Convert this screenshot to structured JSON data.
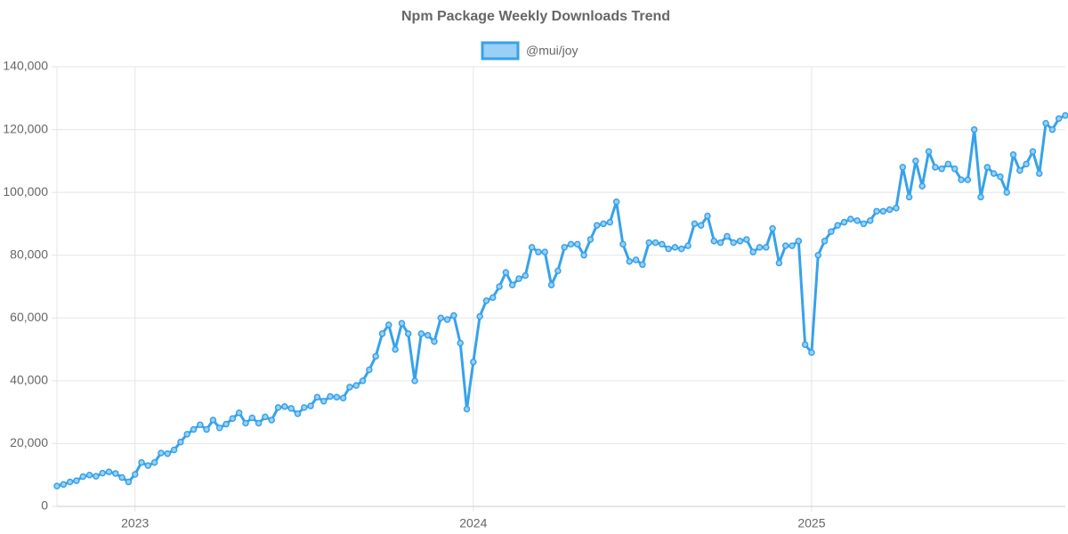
{
  "chart_data": {
    "type": "line",
    "title": "Npm Package Weekly Downloads Trend",
    "categories": [
      null,
      null,
      null,
      null,
      null,
      null,
      null,
      null,
      null,
      null,
      null,
      null,
      "2023",
      null,
      null,
      null,
      null,
      null,
      null,
      null,
      null,
      null,
      null,
      null,
      null,
      null,
      null,
      null,
      null,
      null,
      null,
      null,
      null,
      null,
      null,
      null,
      null,
      null,
      null,
      null,
      null,
      null,
      null,
      null,
      null,
      null,
      null,
      null,
      null,
      null,
      null,
      null,
      null,
      null,
      null,
      null,
      null,
      null,
      null,
      null,
      null,
      null,
      null,
      null,
      "2024",
      null,
      null,
      null,
      null,
      null,
      null,
      null,
      null,
      null,
      null,
      null,
      null,
      null,
      null,
      null,
      null,
      null,
      null,
      null,
      null,
      null,
      null,
      null,
      null,
      null,
      null,
      null,
      null,
      null,
      null,
      null,
      null,
      null,
      null,
      null,
      null,
      null,
      null,
      null,
      null,
      null,
      null,
      null,
      null,
      null,
      null,
      null,
      null,
      null,
      null,
      null,
      "2025",
      null,
      null,
      null,
      null,
      null,
      null,
      null,
      null,
      null,
      null,
      null,
      null,
      null,
      null,
      null,
      null,
      null,
      null,
      null,
      null,
      null,
      null,
      null,
      null,
      null,
      null,
      null,
      null,
      null,
      null,
      null,
      null,
      null,
      null,
      null,
      null,
      null,
      null,
      null
    ],
    "series": [
      {
        "name": "@mui/joy",
        "color": "#36a2eb",
        "fill": "#9ad0f5",
        "values": [
          6500,
          7000,
          7800,
          8200,
          9500,
          10000,
          9600,
          10600,
          11000,
          10500,
          9200,
          7800,
          10200,
          14000,
          13000,
          14000,
          17000,
          16800,
          18000,
          20500,
          23000,
          24500,
          26000,
          24500,
          27500,
          25000,
          26200,
          28000,
          29800,
          26500,
          28200,
          26500,
          28500,
          27500,
          31500,
          31800,
          31200,
          29500,
          31500,
          32000,
          34800,
          33500,
          35000,
          34800,
          34500,
          38000,
          38500,
          40000,
          43500,
          47800,
          55000,
          57800,
          50000,
          58300,
          55000,
          40000,
          55000,
          54500,
          52500,
          60000,
          59500,
          60800,
          52000,
          31000,
          46000,
          60500,
          65500,
          66500,
          70000,
          74500,
          70500,
          72500,
          73500,
          82500,
          81000,
          81000,
          70500,
          75000,
          82500,
          83500,
          83500,
          80000,
          85000,
          89500,
          90000,
          90500,
          97000,
          83500,
          78000,
          78500,
          77000,
          84000,
          84000,
          83500,
          82000,
          82500,
          82000,
          83000,
          90000,
          89500,
          92500,
          84500,
          84000,
          86000,
          84000,
          84500,
          85000,
          81000,
          82500,
          82500,
          88500,
          77500,
          83000,
          83000,
          84500,
          51500,
          49000,
          80000,
          84500,
          87500,
          89500,
          90500,
          91500,
          91000,
          90000,
          91000,
          94000,
          94000,
          94500,
          95000,
          108000,
          98500,
          110000,
          102000,
          113000,
          108000,
          107500,
          109000,
          107500,
          104000,
          104000,
          120000,
          98500,
          108000,
          106000,
          105000,
          100000,
          112000,
          107000,
          109000,
          113000,
          106000,
          122000,
          120000,
          123500,
          124500
        ]
      }
    ],
    "ylim": [
      0,
      140000
    ],
    "yticks": [
      0,
      {
        "value": 20000,
        "label": "20,000"
      },
      {
        "value": 40000,
        "label": "40,000"
      },
      {
        "value": 60000,
        "label": "60,000"
      },
      {
        "value": 80000,
        "label": "80,000"
      },
      {
        "value": 100000,
        "label": "100,000"
      },
      {
        "value": 120000,
        "label": "120,000"
      },
      {
        "value": 140000,
        "label": "140,000"
      }
    ],
    "grid": true
  }
}
